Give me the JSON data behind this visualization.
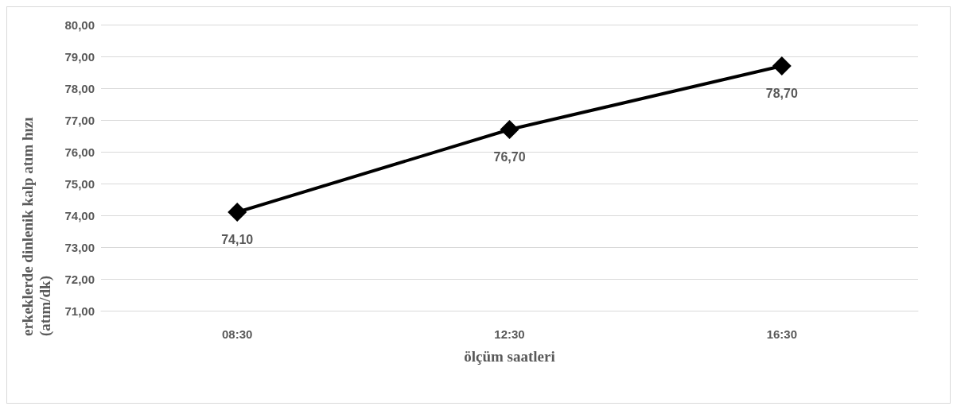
{
  "chart_data": {
    "type": "line",
    "xlabel": "ölçüm saatleri",
    "ylabel": "erkeklerde dinlenik kalp atım hızı (atım/dk)",
    "categories": [
      "08:30",
      "12:30",
      "16:30"
    ],
    "series": [
      {
        "color": "#000000",
        "values": [
          74.1,
          76.7,
          78.7
        ],
        "value_labels": [
          "74,10",
          "76,70",
          "78,70"
        ]
      }
    ],
    "ylim": [
      71,
      80
    ],
    "yticks": [
      {
        "value": 71,
        "label": "71,00"
      },
      {
        "value": 72,
        "label": "72,00"
      },
      {
        "value": 73,
        "label": "73,00"
      },
      {
        "value": 74,
        "label": "74,00"
      },
      {
        "value": 75,
        "label": "75,00"
      },
      {
        "value": 76,
        "label": "76,00"
      },
      {
        "value": 77,
        "label": "77,00"
      },
      {
        "value": 78,
        "label": "78,00"
      },
      {
        "value": 79,
        "label": "79,00"
      },
      {
        "value": 80,
        "label": "80,00"
      }
    ],
    "grid": "y",
    "marker": "diamond",
    "line_style": "solid"
  }
}
